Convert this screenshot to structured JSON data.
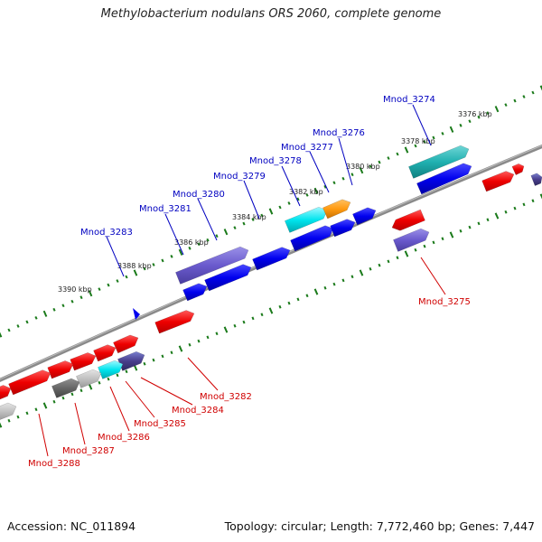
{
  "title": "Methylobacterium nodulans ORS 2060, complete genome",
  "footer": {
    "accession": "Accession: NC_011894",
    "summary": "Topology: circular; Length: 7,772,460 bp; Genes: 7,447"
  },
  "colors": {
    "backbone": "#8a8a8a",
    "tick_dots": "#1a7a1a",
    "label_forward": "#0000c0",
    "label_reverse": "#d00000"
  },
  "ruler": [
    {
      "label": "3376 kbp"
    },
    {
      "label": "3378 kbp"
    },
    {
      "label": "3380 kbp"
    },
    {
      "label": "3382 kbp"
    },
    {
      "label": "3384 kbp"
    },
    {
      "label": "3386 kbp"
    },
    {
      "label": "3388 kbp"
    },
    {
      "label": "3390 kbp"
    }
  ],
  "genes_forward": [
    {
      "label": "Mnod_3274"
    },
    {
      "label": "Mnod_3276"
    },
    {
      "label": "Mnod_3277"
    },
    {
      "label": "Mnod_3278"
    },
    {
      "label": "Mnod_3279"
    },
    {
      "label": "Mnod_3280"
    },
    {
      "label": "Mnod_3281"
    },
    {
      "label": "Mnod_3283"
    }
  ],
  "genes_reverse": [
    {
      "label": "Mnod_3275"
    },
    {
      "label": "Mnod_3282"
    },
    {
      "label": "Mnod_3284"
    },
    {
      "label": "Mnod_3285"
    },
    {
      "label": "Mnod_3286"
    },
    {
      "label": "Mnod_3287"
    },
    {
      "label": "Mnod_3288"
    }
  ]
}
